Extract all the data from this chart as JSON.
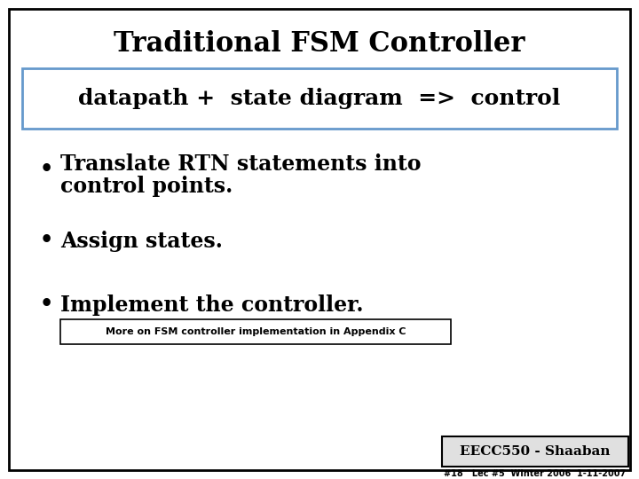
{
  "title": "Traditional FSM Controller",
  "subtitle": "datapath +  state diagram  =>  control",
  "bullet1_line1": "Translate RTN statements into",
  "bullet1_line2": "control points.",
  "bullet2": "Assign states.",
  "bullet3": "Implement the controller.",
  "note": "More on FSM controller implementation in Appendix C",
  "footer": "EECC550 - Shaaban",
  "footer_small": "#18   Lec #5  Winter 2006  1-11-2007",
  "bg_color": "#ffffff",
  "outer_border_color": "#000000",
  "subtitle_box_color": "#6699cc",
  "title_font_size": 22,
  "subtitle_font_size": 18,
  "bullet_font_size": 17,
  "note_font_size": 8,
  "footer_font_size": 11,
  "footer_small_font_size": 7
}
